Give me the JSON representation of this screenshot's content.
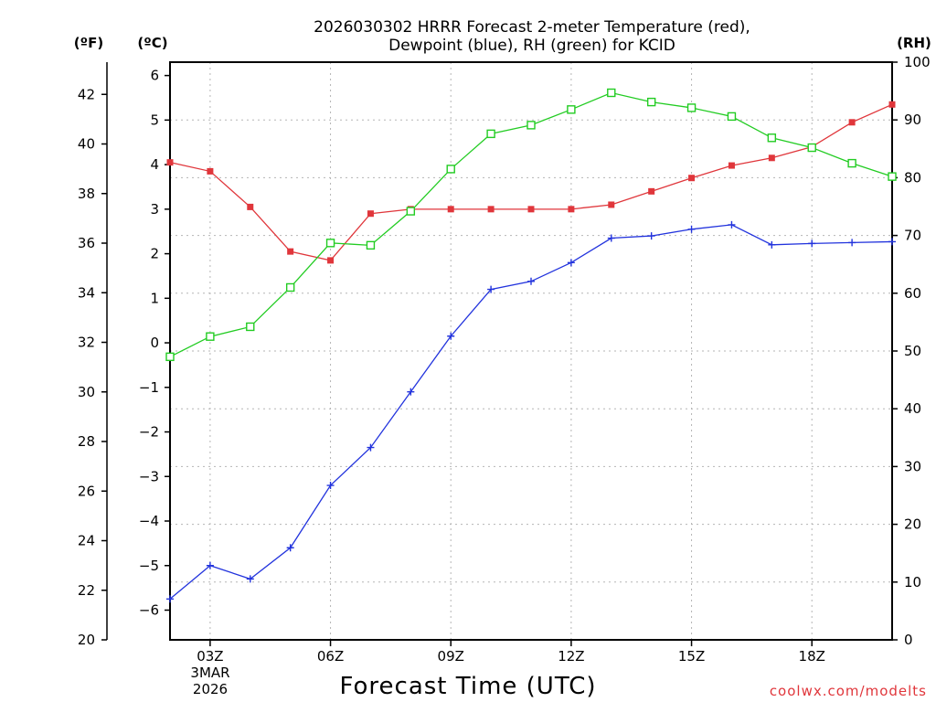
{
  "chart_data": {
    "type": "line",
    "title_line1": "2026030302 HRRR Forecast 2-meter Temperature (red),",
    "title_line2": "Dewpoint (blue), RH (green) for KCID",
    "xlabel": "Forecast Time (UTC)",
    "x_hours": [
      2,
      3,
      4,
      5,
      6,
      7,
      8,
      9,
      10,
      11,
      12,
      13,
      14,
      15,
      16,
      17,
      18,
      19,
      20
    ],
    "x_range": [
      2,
      20
    ],
    "x_ticks": [
      {
        "hour": 3,
        "label": "03Z"
      },
      {
        "hour": 6,
        "label": "06Z"
      },
      {
        "hour": 9,
        "label": "09Z"
      },
      {
        "hour": 12,
        "label": "12Z"
      },
      {
        "hour": 15,
        "label": "15Z"
      },
      {
        "hour": 18,
        "label": "18Z"
      }
    ],
    "date_label_line1": "3MAR",
    "date_label_line2": "2026",
    "left_axis_f": {
      "unit": "(ºF)",
      "range": [
        20,
        43.3
      ],
      "ticks": [
        "20",
        "22",
        "24",
        "26",
        "28",
        "30",
        "32",
        "34",
        "36",
        "38",
        "40",
        "42"
      ]
    },
    "left_axis_c": {
      "unit": "(ºC)",
      "range": [
        -6.667,
        6.3
      ],
      "ticks": [
        "−6",
        "−5",
        "−4",
        "−3",
        "−2",
        "−1",
        "0",
        "1",
        "2",
        "3",
        "4",
        "5",
        "6"
      ]
    },
    "right_axis_rh": {
      "unit": "(RH)",
      "range": [
        0,
        100
      ],
      "ticks": [
        "0",
        "10",
        "20",
        "30",
        "40",
        "50",
        "60",
        "70",
        "80",
        "90",
        "100"
      ]
    },
    "series": [
      {
        "name": "Temperature",
        "color": "#e0363b",
        "marker": "filled-square",
        "axis": "C",
        "values": [
          4.05,
          3.85,
          3.05,
          2.05,
          1.85,
          2.9,
          3.0,
          3.0,
          3.0,
          3.0,
          3.0,
          3.1,
          3.4,
          3.7,
          3.98,
          4.15,
          4.4,
          4.95,
          5.35
        ]
      },
      {
        "name": "Dewpoint",
        "color": "#2233dd",
        "marker": "plus",
        "axis": "C",
        "values": [
          -5.75,
          -5.0,
          -5.3,
          -4.6,
          -3.2,
          -2.35,
          -1.1,
          0.15,
          1.2,
          1.38,
          1.8,
          2.35,
          2.4,
          2.55,
          2.65,
          2.2,
          2.23,
          2.25,
          2.27
        ]
      },
      {
        "name": "RH",
        "color": "#22cc22",
        "marker": "open-square",
        "axis": "RH",
        "values": [
          49,
          52.5,
          54.2,
          61,
          68.7,
          68.3,
          74.2,
          81.5,
          87.6,
          89.1,
          91.8,
          94.7,
          93.1,
          92.1,
          90.6,
          86.9,
          85.2,
          82.5,
          80.2
        ]
      }
    ],
    "credit": "coolwx.com/modelts"
  }
}
